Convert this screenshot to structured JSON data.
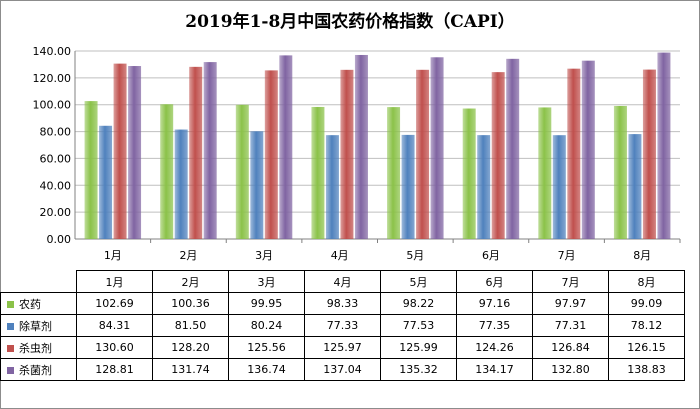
{
  "chart_data": {
    "type": "bar",
    "title": "2019年1-8月中国农药价格指数（CAPI）",
    "categories": [
      "1月",
      "2月",
      "3月",
      "4月",
      "5月",
      "6月",
      "7月",
      "8月"
    ],
    "series": [
      {
        "name": "农药",
        "color": "#8bc249",
        "values": [
          102.69,
          100.36,
          99.95,
          98.33,
          98.22,
          97.16,
          97.97,
          99.09
        ]
      },
      {
        "name": "除草剂",
        "color": "#4f81bd",
        "values": [
          84.31,
          81.5,
          80.24,
          77.33,
          77.53,
          77.35,
          77.31,
          78.12
        ]
      },
      {
        "name": "杀虫剂",
        "color": "#c0504d",
        "values": [
          130.6,
          128.2,
          125.56,
          125.97,
          125.99,
          124.26,
          126.84,
          126.15
        ]
      },
      {
        "name": "杀菌剂",
        "color": "#8064a2",
        "values": [
          128.81,
          131.74,
          136.74,
          137.04,
          135.32,
          134.17,
          132.8,
          138.83
        ]
      }
    ],
    "ylim": [
      0,
      140
    ],
    "yticks": [
      "0.00",
      "20.00",
      "40.00",
      "60.00",
      "80.00",
      "100.00",
      "120.00",
      "140.00"
    ],
    "grid": true,
    "legend": "data-table"
  },
  "table": {
    "rows": [
      {
        "label": "农药",
        "values": [
          "102.69",
          "100.36",
          "99.95",
          "98.33",
          "98.22",
          "97.16",
          "97.97",
          "99.09"
        ]
      },
      {
        "label": "除草剂",
        "values": [
          "84.31",
          "81.50",
          "80.24",
          "77.33",
          "77.53",
          "77.35",
          "77.31",
          "78.12"
        ]
      },
      {
        "label": "杀虫剂",
        "values": [
          "130.60",
          "128.20",
          "125.56",
          "125.97",
          "125.99",
          "124.26",
          "126.84",
          "126.15"
        ]
      },
      {
        "label": "杀菌剂",
        "values": [
          "128.81",
          "131.74",
          "136.74",
          "137.04",
          "135.32",
          "134.17",
          "132.80",
          "138.83"
        ]
      }
    ]
  }
}
